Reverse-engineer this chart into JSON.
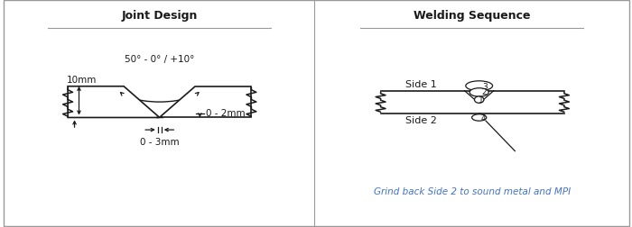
{
  "title_left": "Joint Design",
  "title_right": "Welding Sequence",
  "angle_label": "50° - 0° / +10°",
  "thickness_label": "10mm",
  "gap_label": "0 - 3mm",
  "root_label": "0 - 2mm",
  "side1_label": "Side 1",
  "side2_label": "Side 2",
  "note_label": "Grind back Side 2 to sound metal and MPI",
  "line_color": "#1a1a1a",
  "blue_color": "#4472C4",
  "background": "#ffffff",
  "border_color": "#999999"
}
